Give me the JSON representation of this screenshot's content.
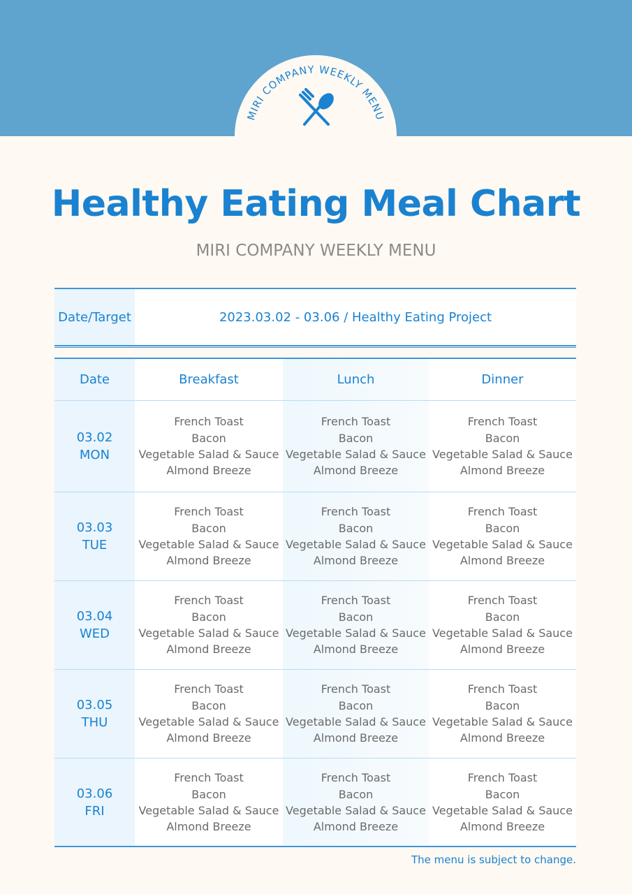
{
  "badge_text": "MIRI COMPANY WEEKLY MENU",
  "title": "Healthy Eating Meal Chart",
  "subtitle": "MIRI COMPANY WEEKLY MENU",
  "info": {
    "label": "Date/Target",
    "value": "2023.03.02 - 03.06 / Healthy Eating Project"
  },
  "table": {
    "header": [
      "Date",
      "Breakfast",
      "Lunch",
      "Dinner"
    ],
    "rows": [
      {
        "date": "03.02",
        "day": "MON",
        "meals": [
          [
            "French Toast",
            "Bacon",
            "Vegetable Salad & Sauce",
            "Almond Breeze"
          ],
          [
            "French Toast",
            "Bacon",
            "Vegetable Salad & Sauce",
            "Almond Breeze"
          ],
          [
            "French Toast",
            "Bacon",
            "Vegetable Salad & Sauce",
            "Almond Breeze"
          ]
        ]
      },
      {
        "date": "03.03",
        "day": "TUE",
        "meals": [
          [
            "French Toast",
            "Bacon",
            "Vegetable Salad & Sauce",
            "Almond Breeze"
          ],
          [
            "French Toast",
            "Bacon",
            "Vegetable Salad & Sauce",
            "Almond Breeze"
          ],
          [
            "French Toast",
            "Bacon",
            "Vegetable Salad & Sauce",
            "Almond Breeze"
          ]
        ]
      },
      {
        "date": "03.04",
        "day": "WED",
        "meals": [
          [
            "French Toast",
            "Bacon",
            "Vegetable Salad & Sauce",
            "Almond Breeze"
          ],
          [
            "French Toast",
            "Bacon",
            "Vegetable Salad & Sauce",
            "Almond Breeze"
          ],
          [
            "French Toast",
            "Bacon",
            "Vegetable Salad & Sauce",
            "Almond Breeze"
          ]
        ]
      },
      {
        "date": "03.05",
        "day": "THU",
        "meals": [
          [
            "French Toast",
            "Bacon",
            "Vegetable Salad & Sauce",
            "Almond Breeze"
          ],
          [
            "French Toast",
            "Bacon",
            "Vegetable Salad & Sauce",
            "Almond Breeze"
          ],
          [
            "French Toast",
            "Bacon",
            "Vegetable Salad & Sauce",
            "Almond Breeze"
          ]
        ]
      },
      {
        "date": "03.06",
        "day": "FRI",
        "meals": [
          [
            "French Toast",
            "Bacon",
            "Vegetable Salad & Sauce",
            "Almond Breeze"
          ],
          [
            "French Toast",
            "Bacon",
            "Vegetable Salad & Sauce",
            "Almond Breeze"
          ],
          [
            "French Toast",
            "Bacon",
            "Vegetable Salad & Sauce",
            "Almond Breeze"
          ]
        ]
      }
    ]
  },
  "footnote": "The menu is subject to change."
}
